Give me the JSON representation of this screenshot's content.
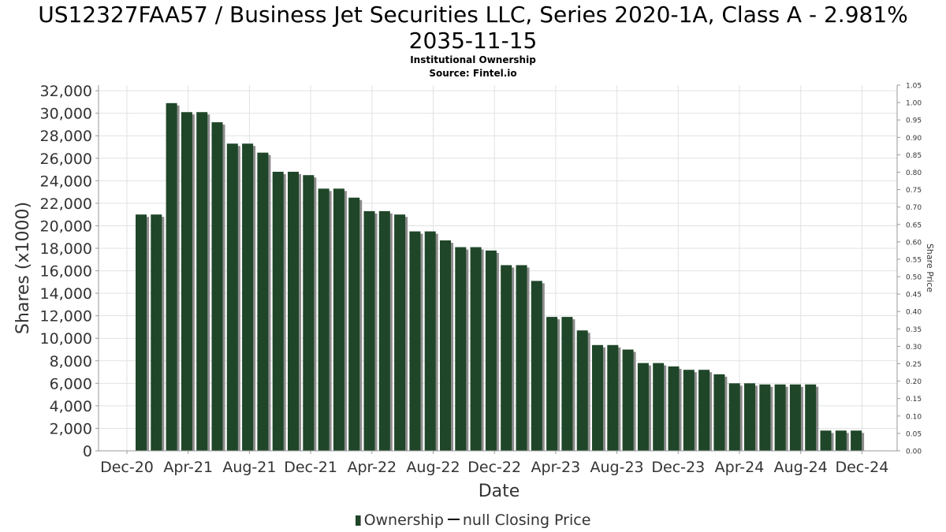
{
  "title_line1": "US12327FAA57 / Business Jet Securities LLC, Series 2020-1A, Class A - 2.981%",
  "title_line2": "2035-11-15",
  "subtitle": "Institutional Ownership",
  "source": "Source: Fintel.io",
  "legend": {
    "ownership": "Ownership",
    "closing_price": "null Closing Price"
  },
  "colors": {
    "bar": "#1f4628",
    "bar_shadow": "#8c8c8c",
    "grid": "#dfe3e0",
    "axis": "#999999"
  },
  "chart_data": {
    "type": "bar",
    "title": "US12327FAA57 / Business Jet Securities LLC, Series 2020-1A, Class A - 2.981% 2035-11-15",
    "xlabel": "Date",
    "ylabel": "Shares (x1000)",
    "y2label": "Share Price",
    "ylim": [
      0,
      32500
    ],
    "y2lim": [
      0,
      1.05
    ],
    "yticks": [
      0,
      2000,
      4000,
      6000,
      8000,
      10000,
      12000,
      14000,
      16000,
      18000,
      20000,
      22000,
      24000,
      26000,
      28000,
      30000,
      32000
    ],
    "y2ticks": [
      "0.00",
      "0.05",
      "0.10",
      "0.15",
      "0.20",
      "0.25",
      "0.30",
      "0.35",
      "0.40",
      "0.45",
      "0.50",
      "0.55",
      "0.60",
      "0.65",
      "0.70",
      "0.75",
      "0.80",
      "0.85",
      "0.90",
      "0.95",
      "1.00",
      "1.05"
    ],
    "x_tick_labels": [
      "Dec-20",
      "Apr-21",
      "Aug-21",
      "Dec-21",
      "Apr-22",
      "Aug-22",
      "Dec-22",
      "Apr-23",
      "Aug-23",
      "Dec-23",
      "Apr-24",
      "Aug-24",
      "Dec-24"
    ],
    "grid": true,
    "legend_position": "bottom",
    "series": [
      {
        "name": "Ownership",
        "values": [
          21000,
          21000,
          30900,
          30100,
          30100,
          29200,
          27300,
          27300,
          26500,
          24800,
          24800,
          24500,
          23300,
          23300,
          22500,
          21300,
          21300,
          21000,
          19500,
          19500,
          18700,
          18100,
          18100,
          17800,
          16500,
          16500,
          15100,
          11900,
          11900,
          10700,
          9400,
          9400,
          9000,
          7800,
          7800,
          7500,
          7200,
          7200,
          6800,
          6000,
          6000,
          5900,
          5900,
          5900,
          5900,
          1800,
          1800,
          1800
        ]
      },
      {
        "name": "null Closing Price",
        "values": []
      }
    ]
  }
}
